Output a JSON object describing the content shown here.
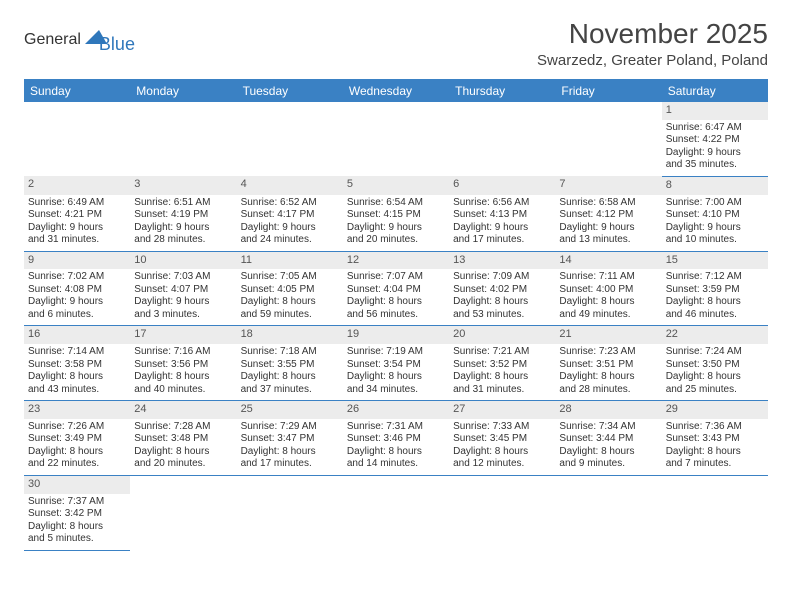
{
  "logo": {
    "general": "General",
    "blue": "Blue",
    "tri_color": "#2f77bb"
  },
  "title": "November 2025",
  "location": "Swarzedz, Greater Poland, Poland",
  "colors": {
    "header_bg": "#3a81c4",
    "header_fg": "#ffffff",
    "daynum_bg": "#ececec",
    "rule": "#3a81c4",
    "text": "#333333"
  },
  "weekdays": [
    "Sunday",
    "Monday",
    "Tuesday",
    "Wednesday",
    "Thursday",
    "Friday",
    "Saturday"
  ],
  "weeks": [
    [
      null,
      null,
      null,
      null,
      null,
      null,
      {
        "n": "1",
        "sunrise": "6:47 AM",
        "sunset": "4:22 PM",
        "dl1": "Daylight: 9 hours",
        "dl2": "and 35 minutes."
      }
    ],
    [
      {
        "n": "2",
        "sunrise": "6:49 AM",
        "sunset": "4:21 PM",
        "dl1": "Daylight: 9 hours",
        "dl2": "and 31 minutes."
      },
      {
        "n": "3",
        "sunrise": "6:51 AM",
        "sunset": "4:19 PM",
        "dl1": "Daylight: 9 hours",
        "dl2": "and 28 minutes."
      },
      {
        "n": "4",
        "sunrise": "6:52 AM",
        "sunset": "4:17 PM",
        "dl1": "Daylight: 9 hours",
        "dl2": "and 24 minutes."
      },
      {
        "n": "5",
        "sunrise": "6:54 AM",
        "sunset": "4:15 PM",
        "dl1": "Daylight: 9 hours",
        "dl2": "and 20 minutes."
      },
      {
        "n": "6",
        "sunrise": "6:56 AM",
        "sunset": "4:13 PM",
        "dl1": "Daylight: 9 hours",
        "dl2": "and 17 minutes."
      },
      {
        "n": "7",
        "sunrise": "6:58 AM",
        "sunset": "4:12 PM",
        "dl1": "Daylight: 9 hours",
        "dl2": "and 13 minutes."
      },
      {
        "n": "8",
        "sunrise": "7:00 AM",
        "sunset": "4:10 PM",
        "dl1": "Daylight: 9 hours",
        "dl2": "and 10 minutes."
      }
    ],
    [
      {
        "n": "9",
        "sunrise": "7:02 AM",
        "sunset": "4:08 PM",
        "dl1": "Daylight: 9 hours",
        "dl2": "and 6 minutes."
      },
      {
        "n": "10",
        "sunrise": "7:03 AM",
        "sunset": "4:07 PM",
        "dl1": "Daylight: 9 hours",
        "dl2": "and 3 minutes."
      },
      {
        "n": "11",
        "sunrise": "7:05 AM",
        "sunset": "4:05 PM",
        "dl1": "Daylight: 8 hours",
        "dl2": "and 59 minutes."
      },
      {
        "n": "12",
        "sunrise": "7:07 AM",
        "sunset": "4:04 PM",
        "dl1": "Daylight: 8 hours",
        "dl2": "and 56 minutes."
      },
      {
        "n": "13",
        "sunrise": "7:09 AM",
        "sunset": "4:02 PM",
        "dl1": "Daylight: 8 hours",
        "dl2": "and 53 minutes."
      },
      {
        "n": "14",
        "sunrise": "7:11 AM",
        "sunset": "4:00 PM",
        "dl1": "Daylight: 8 hours",
        "dl2": "and 49 minutes."
      },
      {
        "n": "15",
        "sunrise": "7:12 AM",
        "sunset": "3:59 PM",
        "dl1": "Daylight: 8 hours",
        "dl2": "and 46 minutes."
      }
    ],
    [
      {
        "n": "16",
        "sunrise": "7:14 AM",
        "sunset": "3:58 PM",
        "dl1": "Daylight: 8 hours",
        "dl2": "and 43 minutes."
      },
      {
        "n": "17",
        "sunrise": "7:16 AM",
        "sunset": "3:56 PM",
        "dl1": "Daylight: 8 hours",
        "dl2": "and 40 minutes."
      },
      {
        "n": "18",
        "sunrise": "7:18 AM",
        "sunset": "3:55 PM",
        "dl1": "Daylight: 8 hours",
        "dl2": "and 37 minutes."
      },
      {
        "n": "19",
        "sunrise": "7:19 AM",
        "sunset": "3:54 PM",
        "dl1": "Daylight: 8 hours",
        "dl2": "and 34 minutes."
      },
      {
        "n": "20",
        "sunrise": "7:21 AM",
        "sunset": "3:52 PM",
        "dl1": "Daylight: 8 hours",
        "dl2": "and 31 minutes."
      },
      {
        "n": "21",
        "sunrise": "7:23 AM",
        "sunset": "3:51 PM",
        "dl1": "Daylight: 8 hours",
        "dl2": "and 28 minutes."
      },
      {
        "n": "22",
        "sunrise": "7:24 AM",
        "sunset": "3:50 PM",
        "dl1": "Daylight: 8 hours",
        "dl2": "and 25 minutes."
      }
    ],
    [
      {
        "n": "23",
        "sunrise": "7:26 AM",
        "sunset": "3:49 PM",
        "dl1": "Daylight: 8 hours",
        "dl2": "and 22 minutes."
      },
      {
        "n": "24",
        "sunrise": "7:28 AM",
        "sunset": "3:48 PM",
        "dl1": "Daylight: 8 hours",
        "dl2": "and 20 minutes."
      },
      {
        "n": "25",
        "sunrise": "7:29 AM",
        "sunset": "3:47 PM",
        "dl1": "Daylight: 8 hours",
        "dl2": "and 17 minutes."
      },
      {
        "n": "26",
        "sunrise": "7:31 AM",
        "sunset": "3:46 PM",
        "dl1": "Daylight: 8 hours",
        "dl2": "and 14 minutes."
      },
      {
        "n": "27",
        "sunrise": "7:33 AM",
        "sunset": "3:45 PM",
        "dl1": "Daylight: 8 hours",
        "dl2": "and 12 minutes."
      },
      {
        "n": "28",
        "sunrise": "7:34 AM",
        "sunset": "3:44 PM",
        "dl1": "Daylight: 8 hours",
        "dl2": "and 9 minutes."
      },
      {
        "n": "29",
        "sunrise": "7:36 AM",
        "sunset": "3:43 PM",
        "dl1": "Daylight: 8 hours",
        "dl2": "and 7 minutes."
      }
    ],
    [
      {
        "n": "30",
        "sunrise": "7:37 AM",
        "sunset": "3:42 PM",
        "dl1": "Daylight: 8 hours",
        "dl2": "and 5 minutes."
      },
      null,
      null,
      null,
      null,
      null,
      null
    ]
  ]
}
